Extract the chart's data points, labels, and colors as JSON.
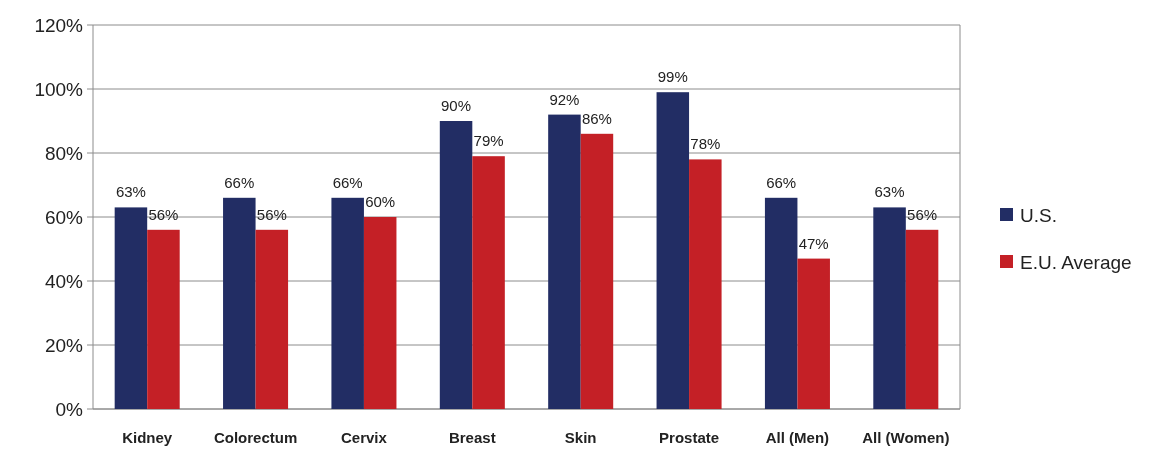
{
  "chart_data": {
    "type": "bar",
    "categories": [
      "Kidney",
      "Colorectum",
      "Cervix",
      "Breast",
      "Skin",
      "Prostate",
      "All (Men)",
      "All (Women)"
    ],
    "series": [
      {
        "name": "U.S.",
        "color": "#222d64",
        "values": [
          63,
          66,
          66,
          90,
          92,
          99,
          66,
          63
        ],
        "value_labels": [
          "63%",
          "66%",
          "66%",
          "90%",
          "92%",
          "99%",
          "66%",
          "63%"
        ]
      },
      {
        "name": "E.U. Average",
        "color": "#c42026",
        "values": [
          56,
          56,
          60,
          79,
          86,
          78,
          47,
          56
        ],
        "value_labels": [
          "56%",
          "56%",
          "60%",
          "79%",
          "86%",
          "78%",
          "47%",
          "56%"
        ]
      }
    ],
    "ylim": [
      0,
      120
    ],
    "yticks": [
      {
        "value": 0,
        "label": "0%"
      },
      {
        "value": 20,
        "label": "20%"
      },
      {
        "value": 40,
        "label": "40%"
      },
      {
        "value": 60,
        "label": "60%"
      },
      {
        "value": 80,
        "label": "80%"
      },
      {
        "value": 100,
        "label": "100%"
      },
      {
        "value": 120,
        "label": "120%"
      }
    ],
    "grid": "y",
    "legend": "right"
  }
}
